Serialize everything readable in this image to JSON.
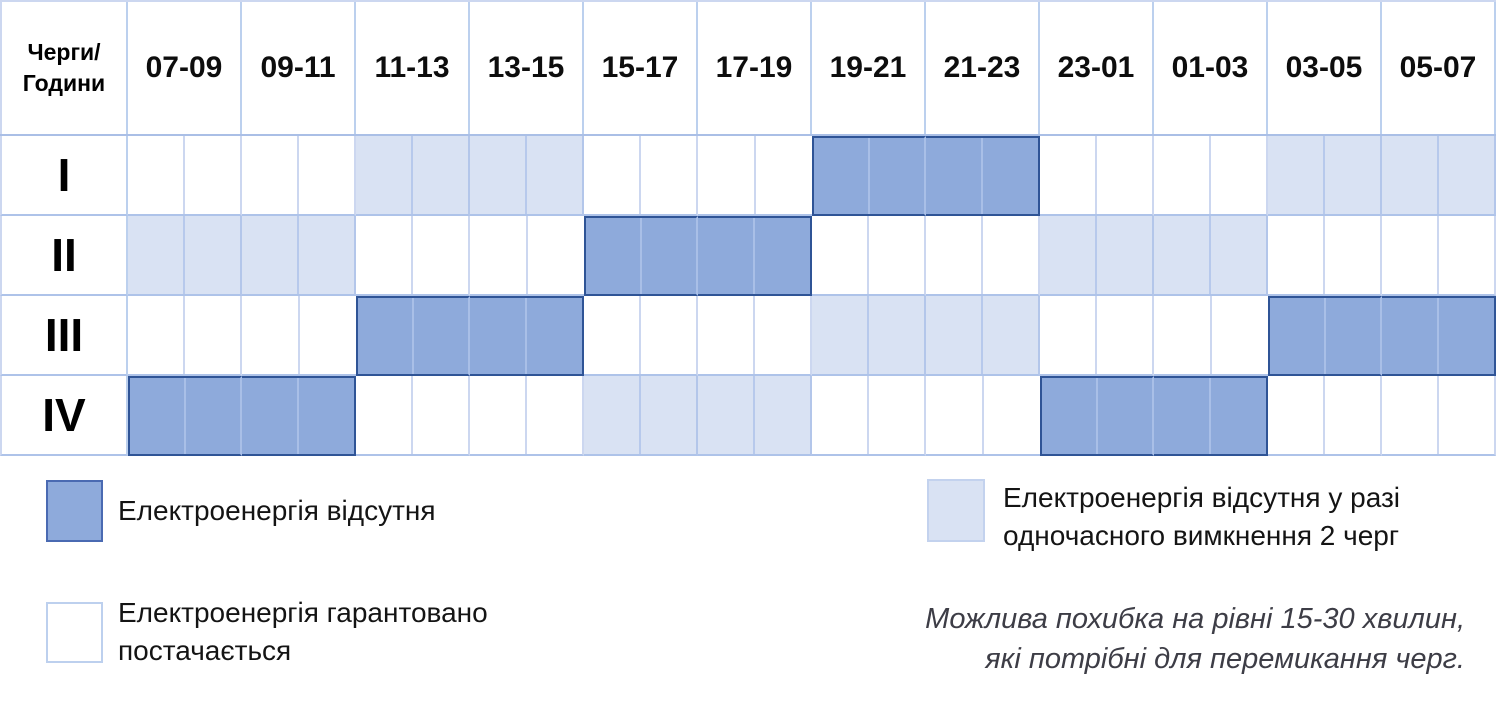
{
  "table": {
    "corner": [
      "Черги/",
      "Години"
    ],
    "time_slots": [
      "07-09",
      "09-11",
      "11-13",
      "13-15",
      "15-17",
      "17-19",
      "19-21",
      "21-23",
      "23-01",
      "01-03",
      "03-05",
      "05-07"
    ],
    "rows": [
      {
        "label": "I",
        "states": [
          "on",
          "on",
          "maybe",
          "maybe",
          "on",
          "on",
          "off",
          "off",
          "on",
          "on",
          "maybe",
          "maybe"
        ]
      },
      {
        "label": "II",
        "states": [
          "maybe",
          "maybe",
          "on",
          "on",
          "off",
          "off",
          "on",
          "on",
          "maybe",
          "maybe",
          "on",
          "on"
        ]
      },
      {
        "label": "III",
        "states": [
          "on",
          "on",
          "off",
          "off",
          "on",
          "on",
          "maybe",
          "maybe",
          "on",
          "on",
          "off",
          "off"
        ]
      },
      {
        "label": "IV",
        "states": [
          "off",
          "off",
          "on",
          "on",
          "maybe",
          "maybe",
          "on",
          "on",
          "off",
          "off",
          "on",
          "on"
        ]
      }
    ]
  },
  "legend": {
    "off": {
      "lines": [
        "Електроенергія відсутня"
      ]
    },
    "on": {
      "lines": [
        "Електроенергія гарантовано",
        "постачається"
      ]
    },
    "maybe": {
      "lines": [
        "Електроенергія відсутня у разі",
        "одночасного вимкнення 2 черг"
      ]
    }
  },
  "note": {
    "lines": [
      "Можлива похибка на рівні 15-30 хвилин,",
      "які потрібні для перемикання черг."
    ]
  },
  "chart_data": {
    "type": "heatmap",
    "title": "Черги/Години",
    "x_categories": [
      "07-09",
      "09-11",
      "11-13",
      "13-15",
      "15-17",
      "17-19",
      "19-21",
      "21-23",
      "23-01",
      "01-03",
      "03-05",
      "05-07"
    ],
    "y_categories": [
      "I",
      "II",
      "III",
      "IV"
    ],
    "value_legend": {
      "off": "Електроенергія відсутня",
      "maybe": "Електроенергія відсутня у разі одночасного вимкнення 2 черг",
      "on": "Електроенергія гарантовано постачається"
    },
    "values": [
      [
        "on",
        "on",
        "maybe",
        "maybe",
        "on",
        "on",
        "off",
        "off",
        "on",
        "on",
        "maybe",
        "maybe"
      ],
      [
        "maybe",
        "maybe",
        "on",
        "on",
        "off",
        "off",
        "on",
        "on",
        "maybe",
        "maybe",
        "on",
        "on"
      ],
      [
        "on",
        "on",
        "off",
        "off",
        "on",
        "on",
        "maybe",
        "maybe",
        "on",
        "on",
        "off",
        "off"
      ],
      [
        "off",
        "off",
        "on",
        "on",
        "maybe",
        "maybe",
        "on",
        "on",
        "off",
        "off",
        "on",
        "on"
      ]
    ]
  },
  "colors": {
    "off": "#8eaadb",
    "off_border": "#2f5496",
    "maybe": "#d9e2f3",
    "grid": "#ccd7f0",
    "grid_strong": "#aec3e9",
    "note_text": "#3d3d46"
  }
}
